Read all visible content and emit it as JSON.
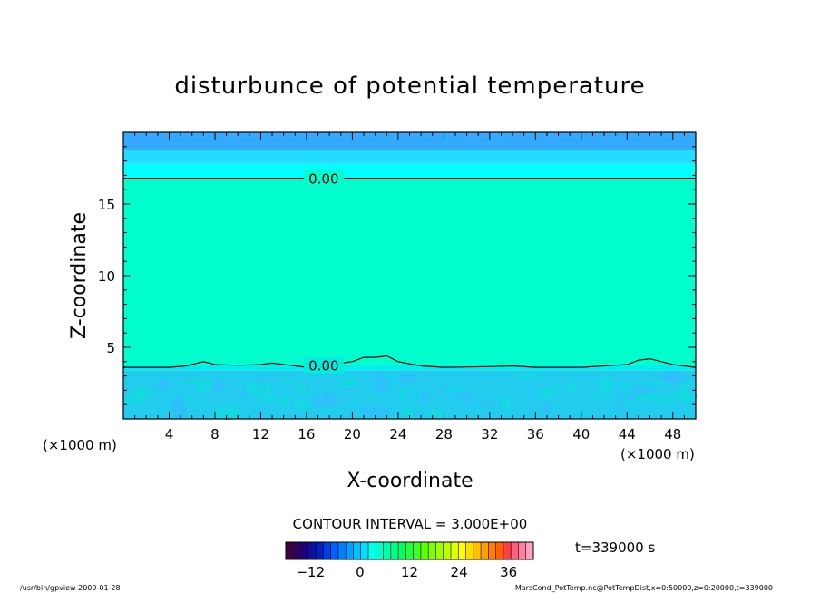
{
  "chart_data": {
    "type": "heatmap",
    "title": "disturbunce of potential temperature",
    "xlabel": "X-coordinate",
    "ylabel": "Z-coordinate",
    "x_unit": "(×1000 m)",
    "y_unit": "(×1000 m)",
    "xlim": [
      0,
      50
    ],
    "ylim": [
      0,
      20
    ],
    "x_ticks": [
      4,
      8,
      12,
      16,
      20,
      24,
      28,
      32,
      36,
      40,
      44,
      48
    ],
    "y_ticks": [
      5,
      10,
      15
    ],
    "fill_bands": [
      {
        "z_range": [
          0,
          3.4
        ],
        "level": -3,
        "color": "#22ccee"
      },
      {
        "z_range": [
          3.4,
          3.8
        ],
        "level": -1.5,
        "color": "#00eeee"
      },
      {
        "z_range": [
          3.8,
          16.8
        ],
        "level": 0,
        "color": "#00ffcc"
      },
      {
        "z_range": [
          16.8,
          17.8
        ],
        "level": -1.5,
        "color": "#00ffff"
      },
      {
        "z_range": [
          17.8,
          18.8
        ],
        "level": -3,
        "color": "#22ddff"
      },
      {
        "z_range": [
          18.8,
          20
        ],
        "level": -4.5,
        "color": "#33aaff"
      }
    ],
    "contours": [
      {
        "level_label": "0.00",
        "style": "solid",
        "z": 16.8
      },
      {
        "level_label": "0.00",
        "style": "solid",
        "points": [
          [
            0,
            3.6
          ],
          [
            4,
            3.6
          ],
          [
            5.5,
            3.7
          ],
          [
            7,
            4.0
          ],
          [
            8,
            3.8
          ],
          [
            10,
            3.75
          ],
          [
            12,
            3.8
          ],
          [
            13,
            3.9
          ],
          [
            15,
            3.7
          ],
          [
            16,
            3.6
          ],
          [
            18,
            3.8
          ],
          [
            20,
            4.0
          ],
          [
            21,
            4.3
          ],
          [
            22,
            4.3
          ],
          [
            23,
            4.4
          ],
          [
            24,
            4.0
          ],
          [
            26,
            3.7
          ],
          [
            28,
            3.6
          ],
          [
            32,
            3.65
          ],
          [
            34,
            3.7
          ],
          [
            36,
            3.6
          ],
          [
            40,
            3.6
          ],
          [
            42,
            3.7
          ],
          [
            44,
            3.8
          ],
          [
            45,
            4.1
          ],
          [
            46,
            4.2
          ],
          [
            47,
            4.0
          ],
          [
            48,
            3.8
          ],
          [
            50,
            3.6
          ]
        ]
      },
      {
        "level_label": "",
        "style": "dashed",
        "z": 18.7
      }
    ],
    "contour_interval": "CONTOUR INTERVAL = 3.000E+00",
    "time": "t=339000 s",
    "colorbar": {
      "ticks": [
        -12,
        0,
        12,
        24,
        36
      ],
      "range": [
        -18,
        42
      ],
      "colors": [
        "#400040",
        "#300060",
        "#200080",
        "#1010a0",
        "#0020c0",
        "#0040e0",
        "#0060ff",
        "#0080ff",
        "#00a0ff",
        "#00c0ff",
        "#00e0ff",
        "#00ffee",
        "#00ffcc",
        "#00ffaa",
        "#00ff88",
        "#00ff66",
        "#20ff40",
        "#40ff20",
        "#60ff00",
        "#80ff00",
        "#a0ff00",
        "#c0ff00",
        "#e0ff00",
        "#ffff00",
        "#ffe000",
        "#ffc000",
        "#ffa000",
        "#ff8000",
        "#ff6000",
        "#ff4040",
        "#ff6080",
        "#ff80a0",
        "#ffa0c0"
      ]
    }
  },
  "footer": {
    "left": "/usr/bin/gpview   2009-01-28",
    "right": "MarsCond_PotTemp.nc@PotTempDist,x=0:50000,z=0:20000,t=339000"
  }
}
